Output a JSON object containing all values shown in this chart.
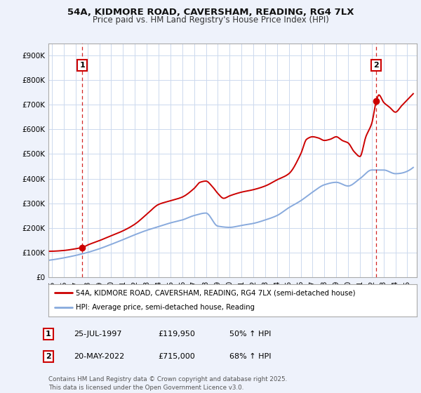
{
  "title1": "54A, KIDMORE ROAD, CAVERSHAM, READING, RG4 7LX",
  "title2": "Price paid vs. HM Land Registry's House Price Index (HPI)",
  "yticks": [
    0,
    100000,
    200000,
    300000,
    400000,
    500000,
    600000,
    700000,
    800000,
    900000
  ],
  "ytick_labels": [
    "£0",
    "£100K",
    "£200K",
    "£300K",
    "£400K",
    "£500K",
    "£600K",
    "£700K",
    "£800K",
    "£900K"
  ],
  "ylim": [
    0,
    950000
  ],
  "xlim_start": 1994.7,
  "xlim_end": 2025.8,
  "red_line_color": "#cc0000",
  "blue_line_color": "#88aadd",
  "point1_x": 1997.56,
  "point1_y": 119950,
  "point2_x": 2022.38,
  "point2_y": 715000,
  "legend_red": "54A, KIDMORE ROAD, CAVERSHAM, READING, RG4 7LX (semi-detached house)",
  "legend_blue": "HPI: Average price, semi-detached house, Reading",
  "table_row1": [
    "1",
    "25-JUL-1997",
    "£119,950",
    "50% ↑ HPI"
  ],
  "table_row2": [
    "2",
    "20-MAY-2022",
    "£715,000",
    "68% ↑ HPI"
  ],
  "footer": "Contains HM Land Registry data © Crown copyright and database right 2025.\nThis data is licensed under the Open Government Licence v3.0.",
  "bg_color": "#eef2fb",
  "plot_bg_color": "#ffffff",
  "grid_color": "#ccd9ee"
}
